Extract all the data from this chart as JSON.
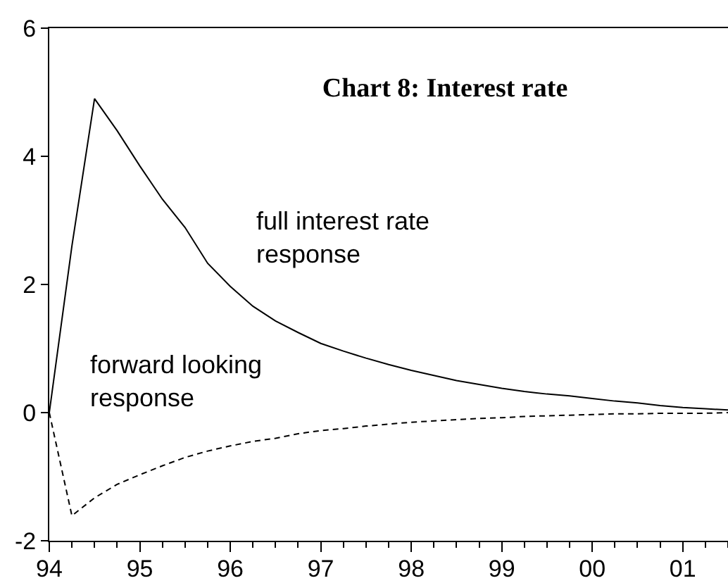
{
  "chart_data": {
    "type": "line",
    "title": "Chart 8: Interest rate",
    "x": [
      1994,
      1994.25,
      1994.5,
      1994.75,
      1995,
      1995.25,
      1995.5,
      1995.75,
      1996,
      1996.25,
      1996.5,
      1996.75,
      1997,
      1997.25,
      1997.5,
      1997.75,
      1998,
      1998.25,
      1998.5,
      1998.75,
      1999,
      1999.25,
      1999.5,
      1999.75,
      2000,
      2000.25,
      2000.5,
      2000.75,
      2001,
      2001.25,
      2001.5
    ],
    "series": [
      {
        "color": "#000000",
        "line_style": "solid",
        "values": [
          0,
          2.6,
          4.9,
          4.4,
          3.85,
          3.33,
          2.89,
          2.33,
          1.97,
          1.66,
          1.43,
          1.25,
          1.08,
          0.96,
          0.85,
          0.75,
          0.66,
          0.58,
          0.5,
          0.44,
          0.38,
          0.33,
          0.29,
          0.26,
          0.22,
          0.18,
          0.15,
          0.11,
          0.08,
          0.06,
          0.04
        ]
      },
      {
        "color": "#000000",
        "line_style": "dashed",
        "values": [
          0,
          -1.61,
          -1.33,
          -1.12,
          -0.97,
          -0.83,
          -0.7,
          -0.6,
          -0.52,
          -0.45,
          -0.4,
          -0.33,
          -0.28,
          -0.25,
          -0.21,
          -0.18,
          -0.15,
          -0.13,
          -0.11,
          -0.09,
          -0.08,
          -0.06,
          -0.05,
          -0.04,
          -0.03,
          -0.02,
          -0.02,
          -0.01,
          -0.01,
          -0.01,
          0.0
        ]
      }
    ],
    "xlim": [
      1994,
      2001.5
    ],
    "xticks": [
      {
        "value": 1994,
        "label": "94"
      },
      {
        "value": 1994.25,
        "label": null
      },
      {
        "value": 1994.5,
        "label": null
      },
      {
        "value": 1994.75,
        "label": null
      },
      {
        "value": 1995,
        "label": "95"
      },
      {
        "value": 1995.25,
        "label": null
      },
      {
        "value": 1995.5,
        "label": null
      },
      {
        "value": 1995.75,
        "label": null
      },
      {
        "value": 1996,
        "label": "96"
      },
      {
        "value": 1996.25,
        "label": null
      },
      {
        "value": 1996.5,
        "label": null
      },
      {
        "value": 1996.75,
        "label": null
      },
      {
        "value": 1997,
        "label": "97"
      },
      {
        "value": 1997.25,
        "label": null
      },
      {
        "value": 1997.5,
        "label": null
      },
      {
        "value": 1997.75,
        "label": null
      },
      {
        "value": 1998,
        "label": "98"
      },
      {
        "value": 1998.25,
        "label": null
      },
      {
        "value": 1998.5,
        "label": null
      },
      {
        "value": 1998.75,
        "label": null
      },
      {
        "value": 1999,
        "label": "99"
      },
      {
        "value": 1999.25,
        "label": null
      },
      {
        "value": 1999.5,
        "label": null
      },
      {
        "value": 1999.75,
        "label": null
      },
      {
        "value": 2000,
        "label": "00"
      },
      {
        "value": 2000.25,
        "label": null
      },
      {
        "value": 2000.5,
        "label": null
      },
      {
        "value": 2000.75,
        "label": null
      },
      {
        "value": 2001,
        "label": "01"
      },
      {
        "value": 2001.25,
        "label": null
      },
      {
        "value": 2001.5,
        "label": null
      }
    ],
    "ylim": [
      -2,
      6
    ],
    "yticks": [
      -2,
      0,
      2,
      4,
      6
    ],
    "annotations": [
      "full interest rate\nresponse",
      "forward looking\nresponse"
    ],
    "grid": false,
    "marker": "none"
  }
}
